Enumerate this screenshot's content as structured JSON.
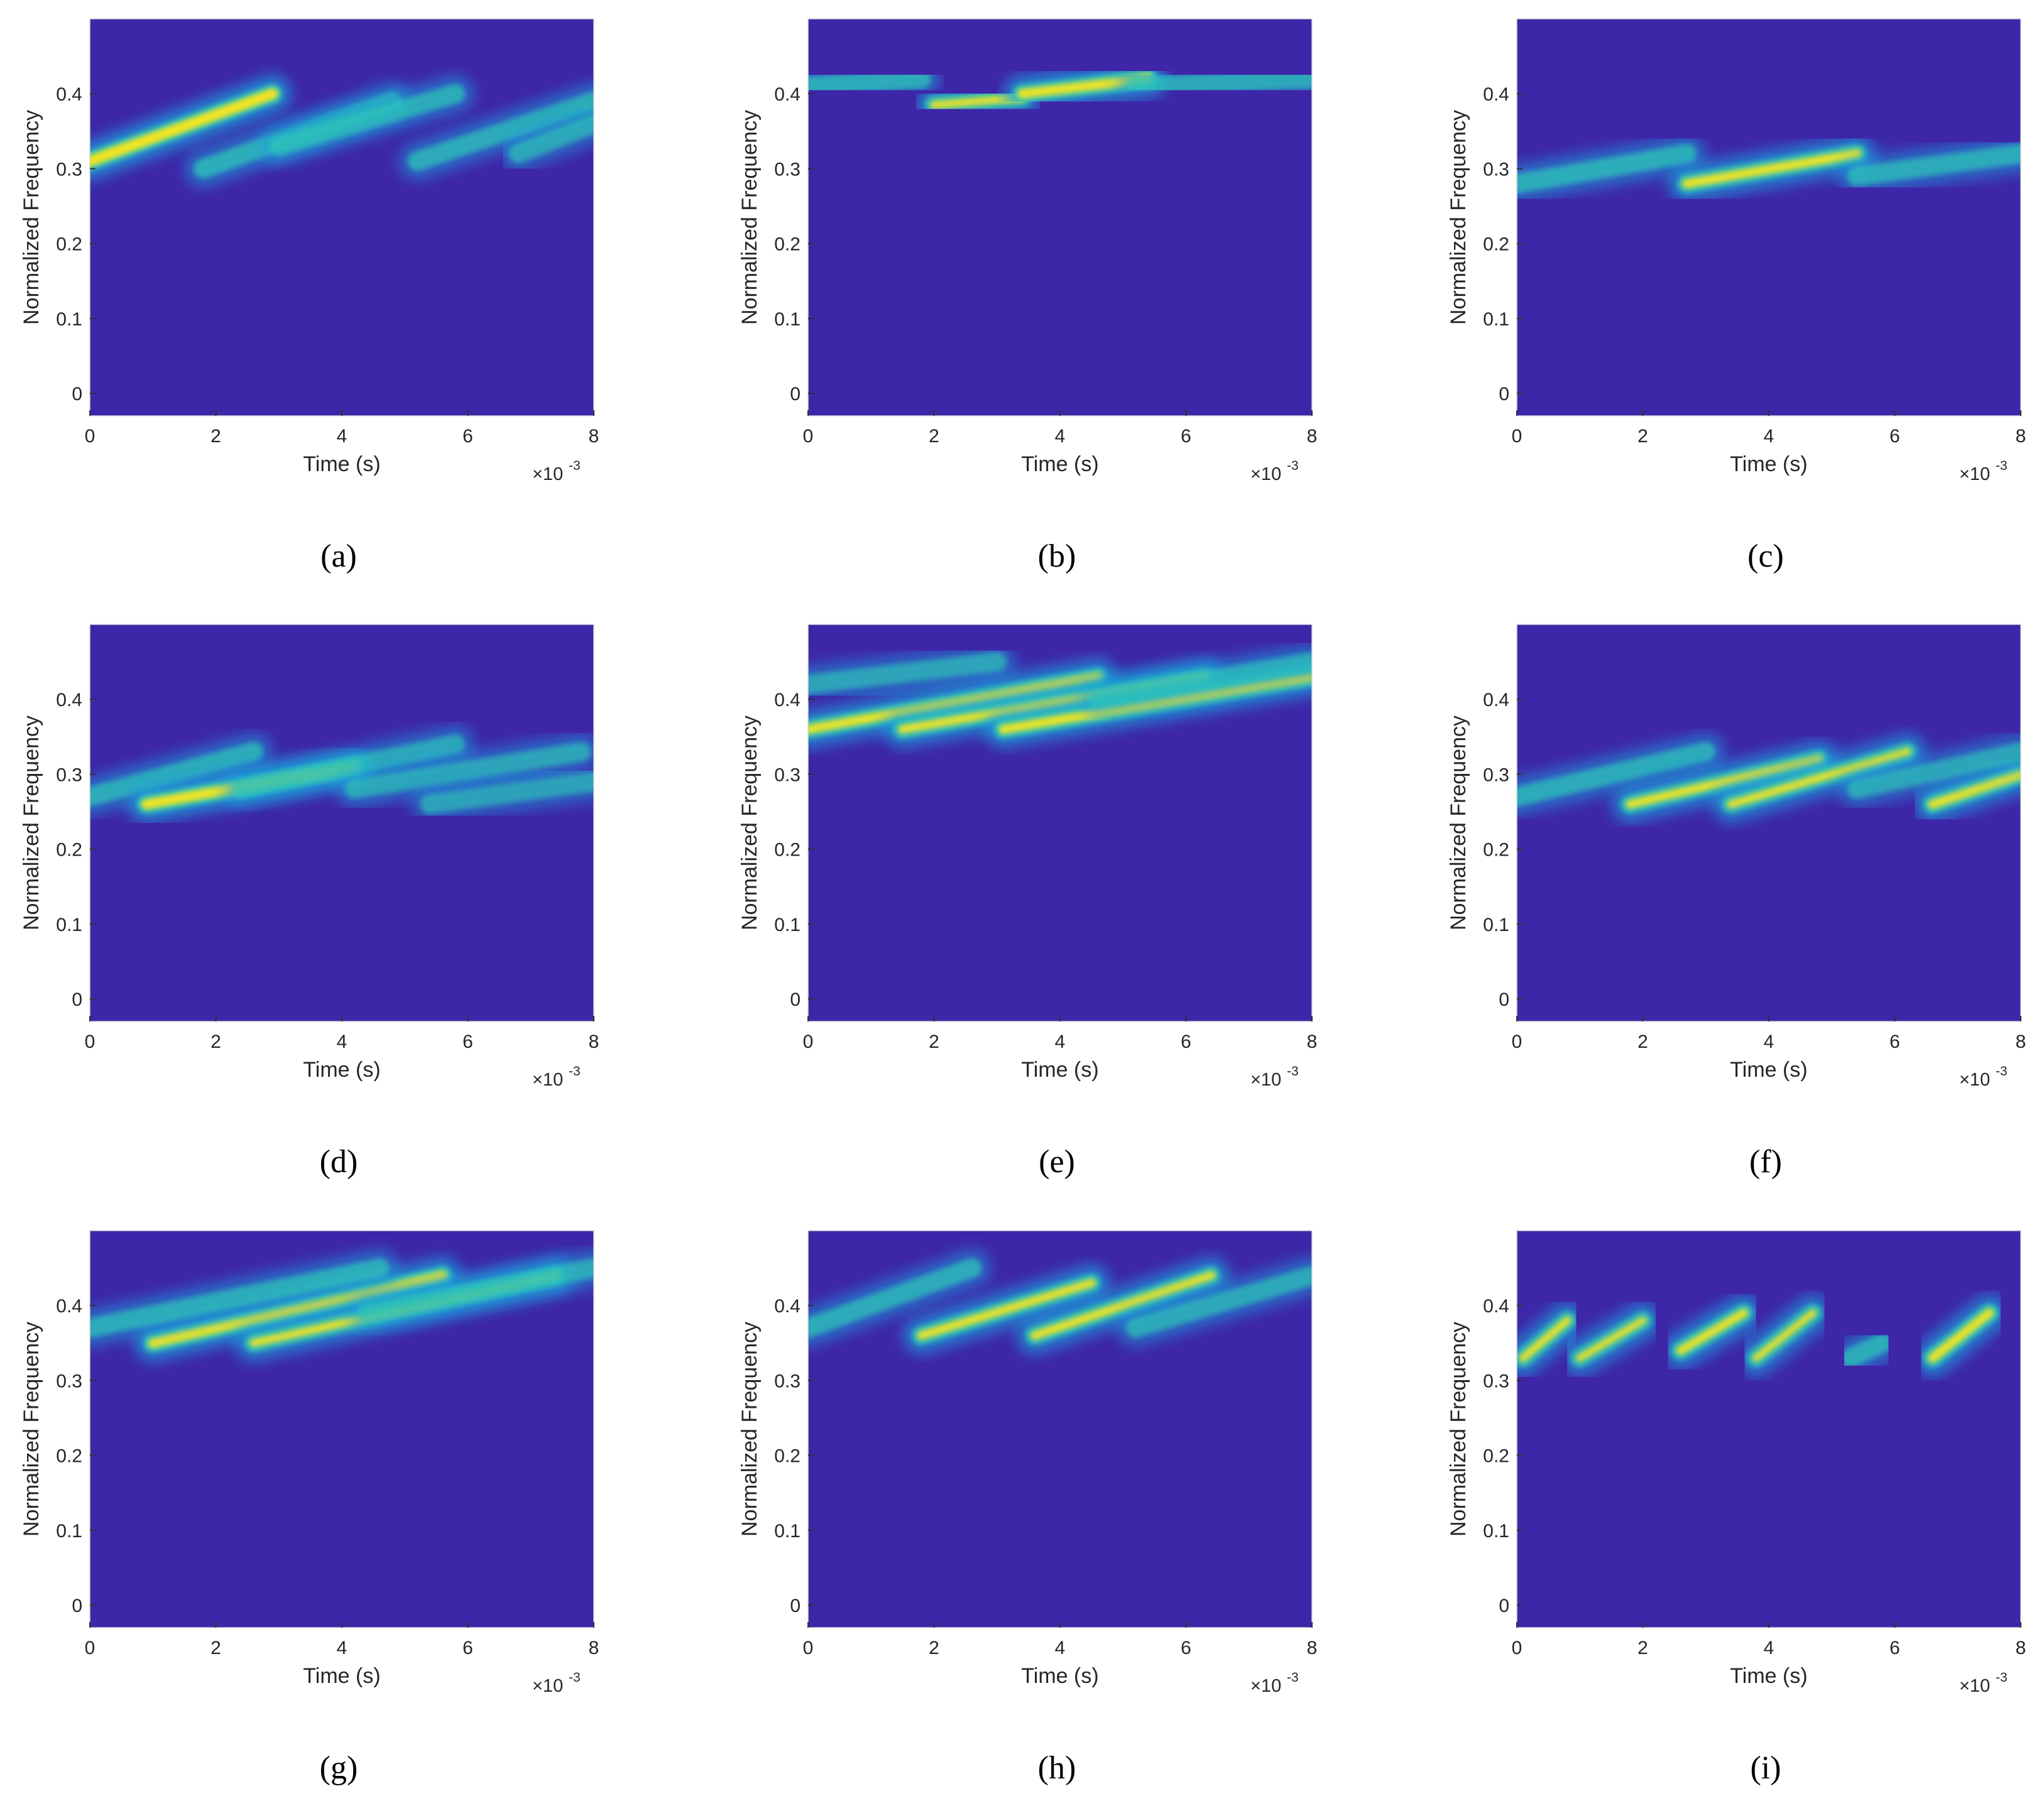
{
  "chart_data": [
    {
      "type": "heatmap",
      "panel_label": "(a)",
      "xlabel": "Time (s)",
      "ylabel": "Normalized Frequency",
      "x_multiplier": "×10",
      "x_multiplier_exp": "-3",
      "xlim": [
        0,
        8
      ],
      "ylim": [
        -0.03,
        0.5
      ],
      "xticks": [
        0,
        2,
        4,
        6,
        8
      ],
      "yticks": [
        0,
        0.1,
        0.2,
        0.3,
        0.4
      ],
      "tick_labels_x": [
        "0",
        "2",
        "4",
        "6",
        "8"
      ],
      "tick_labels_y": [
        "0",
        "0.1",
        "0.2",
        "0.3",
        "0.4"
      ],
      "ridges": [
        {
          "x0": 0,
          "y0": 0.31,
          "x1": 2.9,
          "y1": 0.4,
          "intensity": 1.0
        },
        {
          "x0": 1.8,
          "y0": 0.3,
          "x1": 4.8,
          "y1": 0.39,
          "intensity": 0.55
        },
        {
          "x0": 3.0,
          "y0": 0.33,
          "x1": 5.8,
          "y1": 0.4,
          "intensity": 0.5
        },
        {
          "x0": 5.2,
          "y0": 0.31,
          "x1": 8,
          "y1": 0.39,
          "intensity": 0.5
        },
        {
          "x0": 6.8,
          "y0": 0.32,
          "x1": 8,
          "y1": 0.36,
          "intensity": 0.4
        }
      ]
    },
    {
      "type": "heatmap",
      "panel_label": "(b)",
      "xlabel": "Time (s)",
      "ylabel": "Normalized Frequency",
      "x_multiplier": "×10",
      "x_multiplier_exp": "-3",
      "xlim": [
        0,
        8
      ],
      "ylim": [
        -0.03,
        0.5
      ],
      "xticks": [
        0,
        2,
        4,
        6,
        8
      ],
      "yticks": [
        0,
        0.1,
        0.2,
        0.3,
        0.4
      ],
      "tick_labels_x": [
        "0",
        "2",
        "4",
        "6",
        "8"
      ],
      "tick_labels_y": [
        "0",
        "0.1",
        "0.2",
        "0.3",
        "0.4"
      ],
      "ridges": [
        {
          "x0": 0,
          "y0": 0.41,
          "x1": 1.8,
          "y1": 0.42,
          "intensity": 0.5
        },
        {
          "x0": 2.0,
          "y0": 0.385,
          "x1": 3.4,
          "y1": 0.395,
          "intensity": 0.75
        },
        {
          "x0": 3.4,
          "y0": 0.4,
          "x1": 5.4,
          "y1": 0.42,
          "intensity": 0.9
        },
        {
          "x0": 5.2,
          "y0": 0.41,
          "x1": 8,
          "y1": 0.42,
          "intensity": 0.45
        }
      ]
    },
    {
      "type": "heatmap",
      "panel_label": "(c)",
      "xlabel": "Time (s)",
      "ylabel": "Normalized Frequency",
      "x_multiplier": "×10",
      "x_multiplier_exp": "-3",
      "xlim": [
        0,
        8
      ],
      "ylim": [
        -0.03,
        0.5
      ],
      "xticks": [
        0,
        2,
        4,
        6,
        8
      ],
      "yticks": [
        0,
        0.1,
        0.2,
        0.3,
        0.4
      ],
      "tick_labels_x": [
        "0",
        "2",
        "4",
        "6",
        "8"
      ],
      "tick_labels_y": [
        "0",
        "0.1",
        "0.2",
        "0.3",
        "0.4"
      ],
      "ridges": [
        {
          "x0": 0,
          "y0": 0.28,
          "x1": 2.7,
          "y1": 0.32,
          "intensity": 0.55
        },
        {
          "x0": 2.7,
          "y0": 0.28,
          "x1": 5.4,
          "y1": 0.32,
          "intensity": 0.85
        },
        {
          "x0": 5.4,
          "y0": 0.29,
          "x1": 8,
          "y1": 0.32,
          "intensity": 0.5
        }
      ]
    },
    {
      "type": "heatmap",
      "panel_label": "(d)",
      "xlabel": "Time (s)",
      "ylabel": "Normalized Frequency",
      "x_multiplier": "×10",
      "x_multiplier_exp": "-3",
      "xlim": [
        0,
        8
      ],
      "ylim": [
        -0.03,
        0.5
      ],
      "xticks": [
        0,
        2,
        4,
        6,
        8
      ],
      "yticks": [
        0,
        0.1,
        0.2,
        0.3,
        0.4
      ],
      "tick_labels_x": [
        "0",
        "2",
        "4",
        "6",
        "8"
      ],
      "tick_labels_y": [
        "0",
        "0.1",
        "0.2",
        "0.3",
        "0.4"
      ],
      "ridges": [
        {
          "x0": 0,
          "y0": 0.27,
          "x1": 2.6,
          "y1": 0.33,
          "intensity": 0.5
        },
        {
          "x0": 0.9,
          "y0": 0.26,
          "x1": 4.2,
          "y1": 0.31,
          "intensity": 0.95
        },
        {
          "x0": 2.4,
          "y0": 0.28,
          "x1": 5.8,
          "y1": 0.34,
          "intensity": 0.45
        },
        {
          "x0": 4.2,
          "y0": 0.28,
          "x1": 7.8,
          "y1": 0.33,
          "intensity": 0.4
        },
        {
          "x0": 5.4,
          "y0": 0.26,
          "x1": 8,
          "y1": 0.29,
          "intensity": 0.35
        }
      ]
    },
    {
      "type": "heatmap",
      "panel_label": "(e)",
      "xlabel": "Time (s)",
      "ylabel": "Normalized Frequency",
      "x_multiplier": "×10",
      "x_multiplier_exp": "-3",
      "xlim": [
        0,
        8
      ],
      "ylim": [
        -0.03,
        0.5
      ],
      "xticks": [
        0,
        2,
        4,
        6,
        8
      ],
      "yticks": [
        0,
        0.1,
        0.2,
        0.3,
        0.4
      ],
      "tick_labels_x": [
        "0",
        "2",
        "4",
        "6",
        "8"
      ],
      "tick_labels_y": [
        "0",
        "0.1",
        "0.2",
        "0.3",
        "0.4"
      ],
      "ridges": [
        {
          "x0": 0,
          "y0": 0.36,
          "x1": 4.6,
          "y1": 0.43,
          "intensity": 0.85
        },
        {
          "x0": 1.5,
          "y0": 0.36,
          "x1": 6.3,
          "y1": 0.43,
          "intensity": 0.8
        },
        {
          "x0": 3.1,
          "y0": 0.36,
          "x1": 8,
          "y1": 0.43,
          "intensity": 0.85
        },
        {
          "x0": 0,
          "y0": 0.42,
          "x1": 3.0,
          "y1": 0.45,
          "intensity": 0.4
        },
        {
          "x0": 4.6,
          "y0": 0.4,
          "x1": 8,
          "y1": 0.45,
          "intensity": 0.4
        }
      ]
    },
    {
      "type": "heatmap",
      "panel_label": "(f)",
      "xlabel": "Time (s)",
      "ylabel": "Normalized Frequency",
      "x_multiplier": "×10",
      "x_multiplier_exp": "-3",
      "xlim": [
        0,
        8
      ],
      "ylim": [
        -0.03,
        0.5
      ],
      "xticks": [
        0,
        2,
        4,
        6,
        8
      ],
      "yticks": [
        0,
        0.1,
        0.2,
        0.3,
        0.4
      ],
      "tick_labels_x": [
        "0",
        "2",
        "4",
        "6",
        "8"
      ],
      "tick_labels_y": [
        "0",
        "0.1",
        "0.2",
        "0.3",
        "0.4"
      ],
      "ridges": [
        {
          "x0": 0,
          "y0": 0.27,
          "x1": 3.0,
          "y1": 0.33,
          "intensity": 0.5
        },
        {
          "x0": 1.8,
          "y0": 0.26,
          "x1": 4.8,
          "y1": 0.32,
          "intensity": 0.8
        },
        {
          "x0": 3.4,
          "y0": 0.26,
          "x1": 6.2,
          "y1": 0.33,
          "intensity": 0.75
        },
        {
          "x0": 6.6,
          "y0": 0.26,
          "x1": 8,
          "y1": 0.3,
          "intensity": 0.85
        },
        {
          "x0": 5.4,
          "y0": 0.28,
          "x1": 8,
          "y1": 0.33,
          "intensity": 0.4
        }
      ]
    },
    {
      "type": "heatmap",
      "panel_label": "(g)",
      "xlabel": "Time (s)",
      "ylabel": "Normalized Frequency",
      "x_multiplier": "×10",
      "x_multiplier_exp": "-3",
      "xlim": [
        0,
        8
      ],
      "ylim": [
        -0.03,
        0.5
      ],
      "xticks": [
        0,
        2,
        4,
        6,
        8
      ],
      "yticks": [
        0,
        0.1,
        0.2,
        0.3,
        0.4
      ],
      "tick_labels_x": [
        "0",
        "2",
        "4",
        "6",
        "8"
      ],
      "tick_labels_y": [
        "0",
        "0.1",
        "0.2",
        "0.3",
        "0.4"
      ],
      "ridges": [
        {
          "x0": 1.0,
          "y0": 0.35,
          "x1": 5.6,
          "y1": 0.44,
          "intensity": 0.9
        },
        {
          "x0": 2.6,
          "y0": 0.35,
          "x1": 7.4,
          "y1": 0.44,
          "intensity": 0.75
        },
        {
          "x0": 0,
          "y0": 0.37,
          "x1": 4.6,
          "y1": 0.45,
          "intensity": 0.5
        },
        {
          "x0": 4.4,
          "y0": 0.39,
          "x1": 8,
          "y1": 0.45,
          "intensity": 0.45
        }
      ]
    },
    {
      "type": "heatmap",
      "panel_label": "(h)",
      "xlabel": "Time (s)",
      "ylabel": "Normalized Frequency",
      "x_multiplier": "×10",
      "x_multiplier_exp": "-3",
      "xlim": [
        0,
        8
      ],
      "ylim": [
        -0.03,
        0.5
      ],
      "xticks": [
        0,
        2,
        4,
        6,
        8
      ],
      "yticks": [
        0,
        0.1,
        0.2,
        0.3,
        0.4
      ],
      "tick_labels_x": [
        "0",
        "2",
        "4",
        "6",
        "8"
      ],
      "tick_labels_y": [
        "0",
        "0.1",
        "0.2",
        "0.3",
        "0.4"
      ],
      "ridges": [
        {
          "x0": 0,
          "y0": 0.37,
          "x1": 2.6,
          "y1": 0.45,
          "intensity": 0.5
        },
        {
          "x0": 1.8,
          "y0": 0.36,
          "x1": 4.5,
          "y1": 0.43,
          "intensity": 0.8
        },
        {
          "x0": 3.6,
          "y0": 0.36,
          "x1": 6.4,
          "y1": 0.44,
          "intensity": 0.8
        },
        {
          "x0": 5.2,
          "y0": 0.37,
          "x1": 8,
          "y1": 0.44,
          "intensity": 0.45
        }
      ]
    },
    {
      "type": "heatmap",
      "panel_label": "(i)",
      "xlabel": "Time (s)",
      "ylabel": "Normalized Frequency",
      "x_multiplier": "×10",
      "x_multiplier_exp": "-3",
      "xlim": [
        0,
        8
      ],
      "ylim": [
        -0.03,
        0.5
      ],
      "xticks": [
        0,
        2,
        4,
        6,
        8
      ],
      "yticks": [
        0,
        0.1,
        0.2,
        0.3,
        0.4
      ],
      "tick_labels_x": [
        "0",
        "2",
        "4",
        "6",
        "8"
      ],
      "tick_labels_y": [
        "0",
        "0.1",
        "0.2",
        "0.3",
        "0.4"
      ],
      "ridges": [
        {
          "x0": 0.1,
          "y0": 0.33,
          "x1": 0.8,
          "y1": 0.38,
          "intensity": 0.75
        },
        {
          "x0": 1.0,
          "y0": 0.33,
          "x1": 2.0,
          "y1": 0.38,
          "intensity": 0.7
        },
        {
          "x0": 2.6,
          "y0": 0.34,
          "x1": 3.6,
          "y1": 0.39,
          "intensity": 0.8
        },
        {
          "x0": 3.8,
          "y0": 0.33,
          "x1": 4.7,
          "y1": 0.39,
          "intensity": 0.7
        },
        {
          "x0": 5.3,
          "y0": 0.33,
          "x1": 5.8,
          "y1": 0.35,
          "intensity": 0.5
        },
        {
          "x0": 6.6,
          "y0": 0.33,
          "x1": 7.5,
          "y1": 0.39,
          "intensity": 0.85
        }
      ]
    }
  ]
}
